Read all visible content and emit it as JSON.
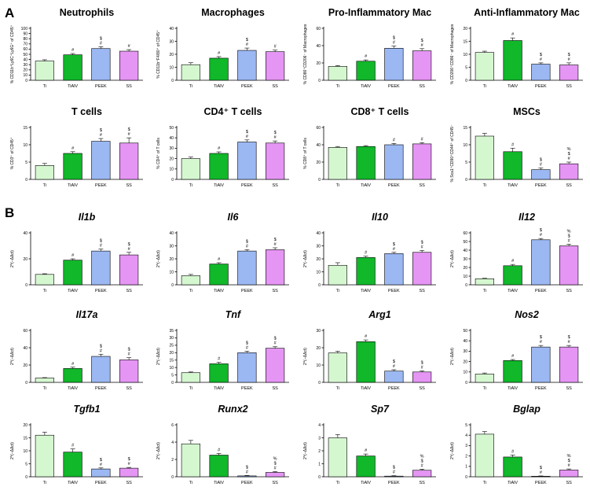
{
  "figure": {
    "section_a_label": "A",
    "section_b_label": "B",
    "categories": [
      "Ti",
      "TiAlV",
      "PEEK",
      "SS"
    ],
    "colors": {
      "Ti": "#d5f7d0",
      "TiAlV": "#10b82a",
      "PEEK": "#9bb8f3",
      "SS": "#e595f4"
    }
  },
  "chart_data": [
    {
      "id": "neutrophils",
      "type": "bar",
      "title": "Neutrophils",
      "italic": false,
      "ylabel": "% CD11b⁺Ly6C⁺Ly6G⁺ of CD45⁺",
      "ylim": [
        0,
        100
      ],
      "ticks": [
        0,
        10,
        20,
        30,
        40,
        50,
        60,
        70,
        80,
        90,
        100
      ],
      "values": [
        37,
        49,
        61,
        56
      ],
      "errors": [
        2.5,
        2.5,
        3.5,
        3
      ],
      "annotations": [
        [],
        [
          "#"
        ],
        [
          "#",
          "$"
        ],
        [
          "#"
        ]
      ]
    },
    {
      "id": "macrophages",
      "type": "bar",
      "title": "Macrophages",
      "italic": false,
      "ylabel": "% CD11b⁺F4/80⁺ of CD45⁺",
      "ylim": [
        0,
        40
      ],
      "ticks": [
        0,
        10,
        20,
        30,
        40
      ],
      "values": [
        12,
        17,
        23,
        22
      ],
      "errors": [
        1.5,
        1.2,
        1.8,
        1.2
      ],
      "annotations": [
        [],
        [
          "#"
        ],
        [
          "#",
          "$"
        ],
        [
          "#"
        ]
      ]
    },
    {
      "id": "pro-inflammatory-mac",
      "type": "bar",
      "title": "Pro-Inflammatory Mac",
      "italic": false,
      "ylabel": "% CD86⁺CD206⁻ of Macrophages",
      "ylim": [
        0,
        60
      ],
      "ticks": [
        0,
        20,
        40,
        60
      ],
      "values": [
        16,
        22,
        37,
        34
      ],
      "errors": [
        1,
        1.5,
        2.5,
        2.5
      ],
      "annotations": [
        [],
        [
          "#"
        ],
        [
          "#",
          "$"
        ],
        [
          "#",
          "$"
        ]
      ]
    },
    {
      "id": "anti-inflammatory-mac",
      "type": "bar",
      "title": "Anti-Inflammatory Mac",
      "italic": false,
      "ylabel": "% CD206⁺CD86⁻ of Macrophages",
      "ylim": [
        0,
        20
      ],
      "ticks": [
        0,
        5,
        10,
        15,
        20
      ],
      "values": [
        10.7,
        15.3,
        6.2,
        5.9
      ],
      "errors": [
        0.5,
        1,
        0.5,
        0.8
      ],
      "annotations": [
        [],
        [
          "#"
        ],
        [
          "#",
          "$"
        ],
        [
          "#",
          "$"
        ]
      ]
    },
    {
      "id": "t-cells",
      "type": "bar",
      "title": "T cells",
      "italic": false,
      "ylabel": "% CD3⁺ of CD45⁺",
      "ylim": [
        0,
        15
      ],
      "ticks": [
        0,
        5,
        10,
        15
      ],
      "values": [
        4,
        7.5,
        11,
        10.5
      ],
      "errors": [
        0.6,
        0.5,
        0.8,
        1.5
      ],
      "annotations": [
        [],
        [
          "#"
        ],
        [
          "#",
          "$"
        ],
        [
          "#",
          "$"
        ]
      ]
    },
    {
      "id": "cd4-t-cells",
      "type": "bar",
      "title": "CD4⁺ T cells",
      "italic": false,
      "ylabel": "% CD4⁺ of T cells",
      "ylim": [
        0,
        50
      ],
      "ticks": [
        0,
        10,
        20,
        30,
        40,
        50
      ],
      "values": [
        20,
        25,
        36,
        35
      ],
      "errors": [
        1.5,
        1.5,
        2,
        2
      ],
      "annotations": [
        [],
        [
          "#"
        ],
        [
          "#",
          "$"
        ],
        [
          "#",
          "$"
        ]
      ]
    },
    {
      "id": "cd8-t-cells",
      "type": "bar",
      "title": "CD8⁺ T cells",
      "italic": false,
      "ylabel": "% CD8⁺ of T cells",
      "ylim": [
        0,
        60
      ],
      "ticks": [
        0,
        20,
        40,
        60
      ],
      "values": [
        37,
        38,
        40,
        41
      ],
      "errors": [
        1,
        1,
        1.5,
        1.5
      ],
      "annotations": [
        [],
        [],
        [
          "#"
        ],
        [
          "#"
        ]
      ]
    },
    {
      "id": "mscs",
      "type": "bar",
      "title": "MSCs",
      "italic": false,
      "ylabel": "% Sca1⁺CD90⁺CD44⁺ of CD45⁻",
      "ylim": [
        0,
        15
      ],
      "ticks": [
        0,
        5,
        10,
        15
      ],
      "values": [
        12.5,
        8,
        2.8,
        4.5
      ],
      "errors": [
        0.8,
        1,
        0.5,
        0.5
      ],
      "annotations": [
        [],
        [
          "#"
        ],
        [
          "#",
          "$"
        ],
        [
          "#",
          "$",
          "%"
        ]
      ]
    },
    {
      "id": "il1b",
      "type": "bar",
      "title": "Il1b",
      "italic": true,
      "ylabel": "2^(−ΔΔct)",
      "ylim": [
        0,
        40
      ],
      "ticks": [
        0,
        20,
        40
      ],
      "values": [
        8,
        19,
        26,
        23
      ],
      "errors": [
        0.5,
        1,
        1.5,
        2
      ],
      "annotations": [
        [],
        [
          "#"
        ],
        [
          "#",
          "$"
        ],
        [
          "#",
          "$"
        ]
      ]
    },
    {
      "id": "il6",
      "type": "bar",
      "title": "Il6",
      "italic": true,
      "ylabel": "2^(−ΔΔct)",
      "ylim": [
        0,
        40
      ],
      "ticks": [
        0,
        10,
        20,
        30,
        40
      ],
      "values": [
        7,
        16,
        26,
        27
      ],
      "errors": [
        1,
        1,
        1,
        1.5
      ],
      "annotations": [
        [],
        [
          "#"
        ],
        [
          "#",
          "$"
        ],
        [
          "#",
          "$"
        ]
      ]
    },
    {
      "id": "il10",
      "type": "bar",
      "title": "Il10",
      "italic": true,
      "ylabel": "2^(−ΔΔct)",
      "ylim": [
        0,
        40
      ],
      "ticks": [
        0,
        10,
        20,
        30,
        40
      ],
      "values": [
        15,
        21,
        24,
        25
      ],
      "errors": [
        2,
        1,
        1,
        1.5
      ],
      "annotations": [
        [],
        [
          "#"
        ],
        [
          "#",
          "$"
        ],
        [
          "#",
          "$"
        ]
      ]
    },
    {
      "id": "il12",
      "type": "bar",
      "title": "Il12",
      "italic": true,
      "ylabel": "2^(−ΔΔct)",
      "ylim": [
        0,
        60
      ],
      "ticks": [
        0,
        10,
        20,
        30,
        40,
        50,
        60
      ],
      "values": [
        7,
        22,
        52,
        45
      ],
      "errors": [
        0.5,
        1.5,
        1.5,
        2
      ],
      "annotations": [
        [],
        [
          "#"
        ],
        [
          "#",
          "$"
        ],
        [
          "#",
          "$",
          "%"
        ]
      ]
    },
    {
      "id": "il17a",
      "type": "bar",
      "title": "Il17a",
      "italic": true,
      "ylabel": "2^(−ΔΔct)",
      "ylim": [
        0,
        60
      ],
      "ticks": [
        0,
        20,
        40,
        60
      ],
      "values": [
        5,
        16,
        30,
        26
      ],
      "errors": [
        0.5,
        1.5,
        2.5,
        2.5
      ],
      "annotations": [
        [],
        [
          "#"
        ],
        [
          "#",
          "$"
        ],
        [
          "#",
          "$"
        ]
      ]
    },
    {
      "id": "tnf",
      "type": "bar",
      "title": "Tnf",
      "italic": true,
      "ylabel": "2^(−ΔΔct)",
      "ylim": [
        0,
        35
      ],
      "ticks": [
        0,
        5,
        10,
        15,
        20,
        25,
        30,
        35
      ],
      "values": [
        6.5,
        12.5,
        20,
        23
      ],
      "errors": [
        0.5,
        1,
        1,
        1
      ],
      "annotations": [
        [],
        [
          "#"
        ],
        [
          "#",
          "$"
        ],
        [
          "#",
          "$"
        ]
      ]
    },
    {
      "id": "arg1",
      "type": "bar",
      "title": "Arg1",
      "italic": true,
      "ylabel": "2^(−ΔΔct)",
      "ylim": [
        0,
        30
      ],
      "ticks": [
        0,
        10,
        20,
        30
      ],
      "values": [
        17,
        23.5,
        6.5,
        6
      ],
      "errors": [
        1,
        1,
        0.8,
        0.6
      ],
      "annotations": [
        [],
        [
          "#"
        ],
        [
          "#",
          "$"
        ],
        [
          "#",
          "$"
        ]
      ]
    },
    {
      "id": "nos2",
      "type": "bar",
      "title": "Nos2",
      "italic": true,
      "ylabel": "2^(−ΔΔct)",
      "ylim": [
        0,
        50
      ],
      "ticks": [
        0,
        10,
        20,
        30,
        40,
        50
      ],
      "values": [
        8,
        21,
        34,
        34
      ],
      "errors": [
        1,
        1,
        1.5,
        1.5
      ],
      "annotations": [
        [],
        [
          "#"
        ],
        [
          "#",
          "$"
        ],
        [
          "#",
          "$"
        ]
      ]
    },
    {
      "id": "tgfb1",
      "type": "bar",
      "title": "Tgfb1",
      "italic": true,
      "ylabel": "2^(−ΔΔct)",
      "ylim": [
        0,
        20
      ],
      "ticks": [
        0,
        5,
        10,
        15,
        20
      ],
      "values": [
        16,
        9.5,
        3,
        3.3
      ],
      "errors": [
        1.2,
        1.2,
        0.4,
        0.3
      ],
      "annotations": [
        [],
        [
          "#"
        ],
        [
          "#",
          "$"
        ],
        [
          "#",
          "$"
        ]
      ]
    },
    {
      "id": "runx2",
      "type": "bar",
      "title": "Runx2",
      "italic": true,
      "ylabel": "2^(−ΔΔct)",
      "ylim": [
        0,
        6
      ],
      "ticks": [
        0,
        2,
        4,
        6
      ],
      "values": [
        3.8,
        2.5,
        0.1,
        0.5
      ],
      "errors": [
        0.4,
        0.2,
        0.05,
        0.1
      ],
      "annotations": [
        [],
        [
          "#"
        ],
        [
          "#",
          "$"
        ],
        [
          "#",
          "$",
          "%"
        ]
      ]
    },
    {
      "id": "sp7",
      "type": "bar",
      "title": "Sp7",
      "italic": true,
      "ylabel": "2^(−ΔΔct)",
      "ylim": [
        0,
        4
      ],
      "ticks": [
        0,
        1,
        2,
        3,
        4
      ],
      "values": [
        3,
        1.6,
        0.05,
        0.5
      ],
      "errors": [
        0.25,
        0.15,
        0.03,
        0.08
      ],
      "annotations": [
        [],
        [
          "#"
        ],
        [
          "#",
          "$"
        ],
        [
          "#",
          "$",
          "%"
        ]
      ]
    },
    {
      "id": "bglap",
      "type": "bar",
      "title": "Bglap",
      "italic": true,
      "ylabel": "2^(−ΔΔct)",
      "ylim": [
        0,
        5
      ],
      "ticks": [
        0,
        1,
        2,
        3,
        4,
        5
      ],
      "values": [
        4.1,
        1.9,
        0.05,
        0.65
      ],
      "errors": [
        0.25,
        0.2,
        0.03,
        0.1
      ],
      "annotations": [
        [],
        [
          "#"
        ],
        [
          "#",
          "$"
        ],
        [
          "#",
          "$",
          "%"
        ]
      ]
    }
  ]
}
